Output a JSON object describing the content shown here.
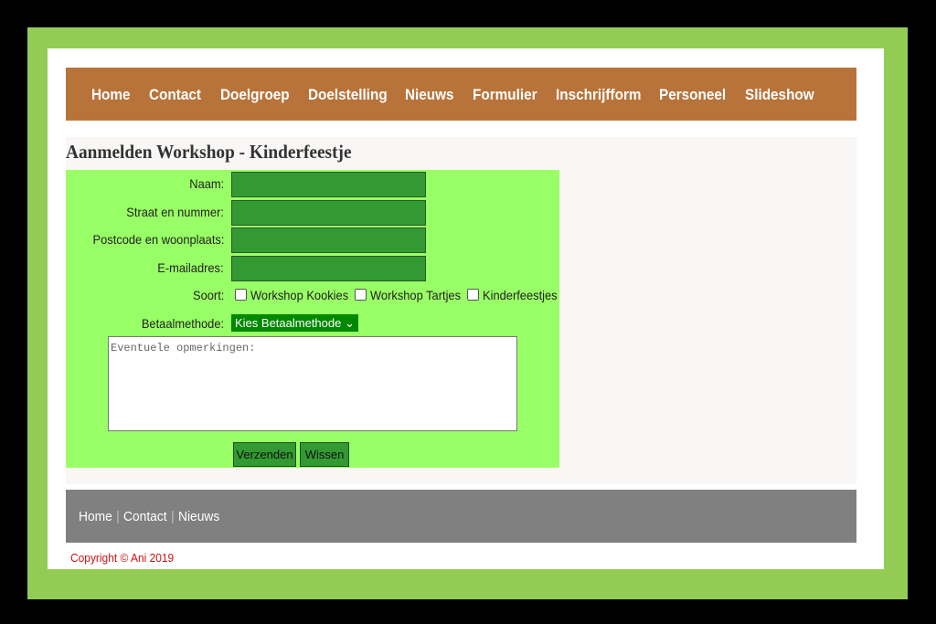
{
  "nav": [
    "Home",
    "Contact",
    "Doelgroep",
    "Doelstelling",
    "Nieuws",
    "Formulier",
    "Inschrijfform",
    "Personeel",
    "Slideshow"
  ],
  "heading": "Aanmelden Workshop - Kinderfeestje",
  "form": {
    "fields": [
      "Naam:",
      "Straat en nummer:",
      "Postcode en woonplaats:",
      "E-mailadres:"
    ],
    "soort_label": "Soort:",
    "options": [
      "Workshop Kookies",
      "Workshop Tartjes",
      "Kinderfeestjes"
    ],
    "betaal_label": "Betaalmethode:",
    "select": "Kies Betaalmethode",
    "remarks_placeholder": "Eventuele opmerkingen:",
    "buttons": [
      "Verzenden",
      "Wissen"
    ]
  },
  "footer": {
    "links": [
      "Home",
      "Contact",
      "Nieuws"
    ],
    "copyright": "Copyright © Ani 2019"
  }
}
